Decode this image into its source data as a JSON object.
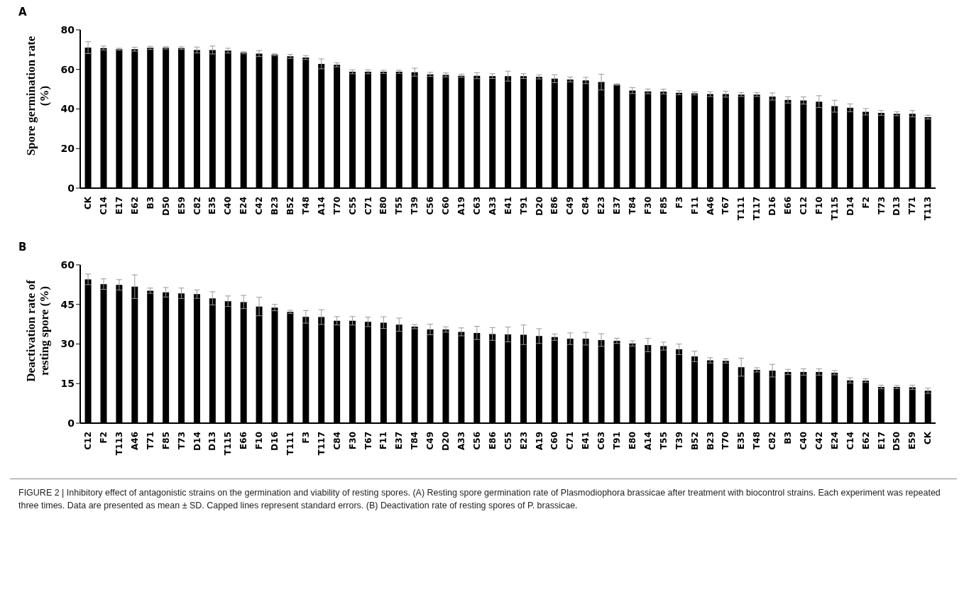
{
  "chart_data": [
    {
      "type": "bar",
      "title": "A",
      "ylabel": "Spore germination rate (%)",
      "color": "#000000",
      "ylim": [
        0,
        80
      ],
      "yticks": [
        0,
        20,
        40,
        60,
        80
      ],
      "categories": [
        "CK",
        "C14",
        "E17",
        "E62",
        "B3",
        "D50",
        "E59",
        "C82",
        "E35",
        "C40",
        "E24",
        "C42",
        "B23",
        "B52",
        "T48",
        "A14",
        "T70",
        "C55",
        "C71",
        "E80",
        "T55",
        "T39",
        "C56",
        "C60",
        "A19",
        "C63",
        "A33",
        "E41",
        "T91",
        "D20",
        "E86",
        "C49",
        "C84",
        "E23",
        "E37",
        "T84",
        "F30",
        "F85",
        "F3",
        "F11",
        "A46",
        "T67",
        "T111",
        "T117",
        "D16",
        "E66",
        "C12",
        "F10",
        "T115",
        "D14",
        "F2",
        "T73",
        "D13",
        "T71",
        "T113"
      ],
      "values": [
        71,
        70.8,
        70.2,
        70.2,
        70.9,
        70.9,
        70.8,
        69.8,
        69.8,
        69.5,
        68.5,
        68,
        67.4,
        66.6,
        66,
        62.8,
        62.3,
        58.8,
        58.8,
        58.8,
        58.8,
        58.6,
        57.5,
        57.2,
        56.8,
        56.8,
        56.6,
        56.6,
        56.6,
        56.2,
        55.3,
        54.9,
        54.4,
        53.6,
        52.4,
        49.3,
        48.9,
        48.8,
        48.2,
        47.9,
        47.5,
        47.5,
        47.3,
        47.3,
        46.3,
        44.6,
        44.3,
        43.7,
        41.4,
        40.6,
        38.6,
        38,
        37.6,
        37.6,
        35.9
      ],
      "errors": [
        3,
        1,
        0.5,
        1,
        0.8,
        0.6,
        0.6,
        1.5,
        2,
        1.2,
        0.6,
        1.5,
        0.5,
        1,
        1,
        2.5,
        1,
        1,
        1,
        0.8,
        0.8,
        2,
        1,
        1,
        0.8,
        1.5,
        1.2,
        2.5,
        1.2,
        1,
        2,
        1.2,
        1.6,
        4,
        0.4,
        1.5,
        1.2,
        1.2,
        1,
        0.8,
        1.2,
        1.5,
        1,
        1,
        1.8,
        1.6,
        1.8,
        3,
        3,
        2,
        1.6,
        1.2,
        1,
        1.6,
        1
      ]
    },
    {
      "type": "bar",
      "title": "B",
      "ylabel": "Deactivation rate of resting spore (%)",
      "color": "#000000",
      "ylim": [
        0,
        60
      ],
      "yticks": [
        0,
        15,
        30,
        45,
        60
      ],
      "categories": [
        "C12",
        "F2",
        "T113",
        "A46",
        "T71",
        "F85",
        "T73",
        "D14",
        "D13",
        "T115",
        "E66",
        "F10",
        "D16",
        "T111",
        "F3",
        "T117",
        "C84",
        "F30",
        "T67",
        "F11",
        "E37",
        "T84",
        "C49",
        "D20",
        "A33",
        "C56",
        "E86",
        "C55",
        "E23",
        "A19",
        "C60",
        "C71",
        "E41",
        "C63",
        "T91",
        "E80",
        "A14",
        "T55",
        "T39",
        "B52",
        "B23",
        "T70",
        "E35",
        "T48",
        "C82",
        "B3",
        "C40",
        "C42",
        "E24",
        "C14",
        "E62",
        "E17",
        "D50",
        "E59",
        "CK"
      ],
      "values": [
        54.5,
        52.7,
        52.4,
        51.7,
        50.2,
        49.6,
        49.2,
        48.9,
        47.3,
        46.2,
        45.9,
        44.2,
        43.8,
        42.2,
        40.3,
        40.2,
        38.8,
        38.8,
        38.4,
        38.1,
        37.3,
        36.6,
        35.5,
        35.5,
        34.6,
        34.2,
        33.8,
        33.6,
        33.5,
        33,
        32.6,
        32,
        32,
        31.5,
        31.2,
        30.2,
        29.6,
        29.2,
        28,
        25.3,
        23.8,
        23.6,
        21.2,
        20.2,
        19.9,
        19.4,
        19.4,
        19.4,
        19.1,
        16.2,
        16.1,
        13.7,
        13.7,
        13.6,
        12.3
      ],
      "errors": [
        2,
        2,
        2,
        4.5,
        1,
        1.8,
        2,
        1.6,
        2.5,
        2,
        2.5,
        3.5,
        1.2,
        0.6,
        2.4,
        2.8,
        1.6,
        1.6,
        1.8,
        2.2,
        2.5,
        0.8,
        2,
        1,
        1.5,
        2.5,
        2.4,
        2.8,
        3.7,
        2.8,
        1.2,
        2.2,
        2.4,
        2.4,
        1,
        1,
        2.5,
        1.5,
        2,
        2,
        1,
        0.8,
        3.4,
        0.8,
        2.4,
        1,
        1.2,
        1.2,
        0.8,
        1,
        0.7,
        0.7,
        0.6,
        0.8,
        1
      ],
      "annotations": [
        "FIGURE 2 | Inhibitory effect of antagonistic strains on the germination and viability of resting spores. (A) Resting spore germination rate of Plasmodiophora brassicae after treatment with biocontrol strains. Each experiment was repeated three times. Data are presented as mean ± SD. Capped lines represent standard errors. (B) Deactivation rate of resting spores of P. brassicae."
      ]
    }
  ]
}
